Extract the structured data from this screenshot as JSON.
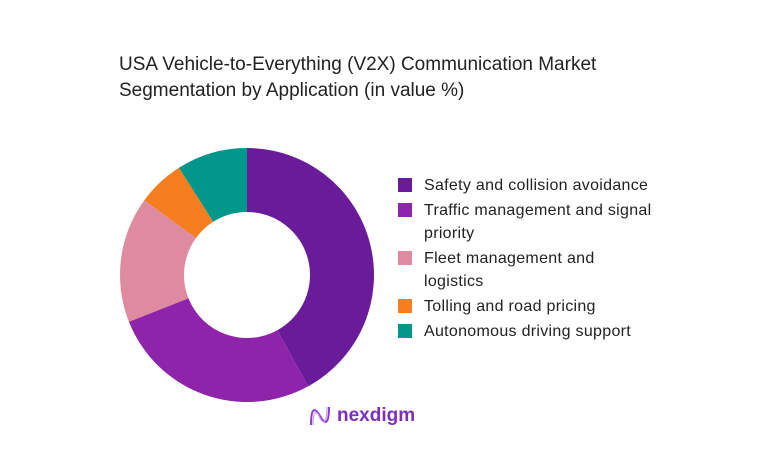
{
  "chart_data": {
    "type": "pie",
    "title": "USA Vehicle-to-Everything (V2X) Communication Market Segmentation by Application (in value %)",
    "categories": [
      "Safety and collision avoidance",
      "Traffic management and signal priority",
      "Fleet management and logistics",
      "Tolling and road pricing",
      "Autonomous driving support"
    ],
    "values": [
      42,
      27,
      16,
      6,
      9
    ],
    "colors": [
      "#6a1b9a",
      "#8e24aa",
      "#de8aa0",
      "#f57f20",
      "#00968a"
    ],
    "donut": true,
    "legend_position": "right"
  },
  "title_lines": [
    "USA Vehicle-to-Everything (V2X) Communication Market",
    "Segmentation by Application (in value %)"
  ],
  "logo": {
    "text": "nexdigm"
  }
}
